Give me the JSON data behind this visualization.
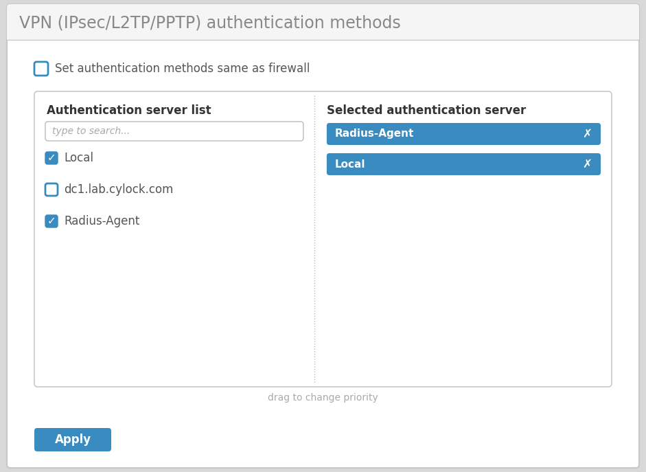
{
  "title": "VPN (IPsec/L2TP/PPTP) authentication methods",
  "title_fontsize": 17,
  "bg_outer": "#d8d8d8",
  "bg_inner": "#ffffff",
  "border_color": "#c8c8c8",
  "title_bg": "#f5f5f5",
  "title_text_color": "#888888",
  "checkbox_unchecked_color": "#ffffff",
  "checkbox_checked_color": "#3a8bbf",
  "checkbox_border_color": "#3a8bbf",
  "firewall_checkbox_label": "Set authentication methods same as firewall",
  "left_panel_title": "Authentication server list",
  "left_panel_title_color": "#333333",
  "search_placeholder": "type to search...",
  "search_border_color": "#bbbbbb",
  "search_text_color": "#aaaaaa",
  "list_items": [
    {
      "label": "Local",
      "checked": true
    },
    {
      "label": "dc1.lab.cylock.com",
      "checked": false
    },
    {
      "label": "Radius-Agent",
      "checked": true
    }
  ],
  "right_panel_title": "Selected authentication server",
  "right_panel_title_color": "#333333",
  "selected_items": [
    "Radius-Agent",
    "Local"
  ],
  "selected_item_bg": "#3a8bbf",
  "selected_item_text_color": "#ffffff",
  "divider_color": "#bbbbbb",
  "drag_hint_text": "drag to change priority",
  "drag_hint_color": "#aaaaaa",
  "apply_button_text": "Apply",
  "apply_button_bg": "#3a8bbf",
  "apply_button_text_color": "#ffffff",
  "panel_border_color": "#c8c8c8",
  "panel_bg": "#ffffff",
  "item_text_color": "#555555",
  "item_fontsize": 11,
  "label_fontsize": 12
}
